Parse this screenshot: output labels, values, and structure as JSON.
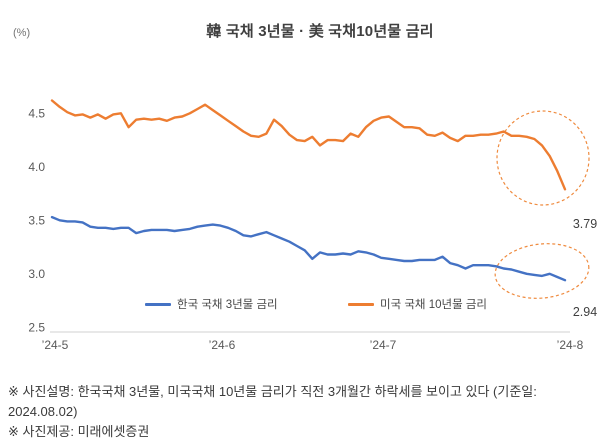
{
  "header": {
    "title": "韓 국채 3년물 · 美 국채10년물 금리",
    "unit_label": "(%)"
  },
  "chart_data": {
    "type": "line",
    "title": "韓 국채 3년물 · 美 국채10년물 금리",
    "ylabel": "(%)",
    "ylim": [
      2.5,
      4.75
    ],
    "y_ticks": [
      4.5,
      4.0,
      3.5,
      3.0,
      2.5
    ],
    "x_ticks": [
      "’24-5",
      "’24-6",
      "’24-7",
      "’24-8"
    ],
    "grid": false,
    "legend_position": "bottom-inside",
    "series": [
      {
        "name": "한국 국채 3년물 금리",
        "color": "#4472C4",
        "end_label": "2.94",
        "values": [
          3.53,
          3.5,
          3.49,
          3.49,
          3.48,
          3.44,
          3.43,
          3.43,
          3.42,
          3.43,
          3.43,
          3.38,
          3.4,
          3.41,
          3.41,
          3.41,
          3.4,
          3.41,
          3.42,
          3.44,
          3.45,
          3.46,
          3.45,
          3.43,
          3.4,
          3.36,
          3.35,
          3.37,
          3.39,
          3.36,
          3.33,
          3.3,
          3.26,
          3.22,
          3.14,
          3.2,
          3.18,
          3.18,
          3.19,
          3.18,
          3.21,
          3.2,
          3.18,
          3.15,
          3.14,
          3.13,
          3.12,
          3.12,
          3.13,
          3.13,
          3.13,
          3.16,
          3.1,
          3.08,
          3.05,
          3.08,
          3.08,
          3.08,
          3.07,
          3.05,
          3.04,
          3.02,
          3.0,
          2.99,
          2.98,
          3.0,
          2.97,
          2.94
        ]
      },
      {
        "name": "미국 국채 10년물 금리",
        "color": "#ED7D31",
        "end_label": "3.79",
        "values": [
          4.62,
          4.56,
          4.51,
          4.48,
          4.49,
          4.46,
          4.49,
          4.45,
          4.49,
          4.5,
          4.37,
          4.44,
          4.45,
          4.44,
          4.45,
          4.43,
          4.46,
          4.47,
          4.5,
          4.54,
          4.58,
          4.53,
          4.48,
          4.43,
          4.38,
          4.33,
          4.29,
          4.28,
          4.31,
          4.44,
          4.38,
          4.3,
          4.25,
          4.24,
          4.28,
          4.2,
          4.25,
          4.25,
          4.24,
          4.31,
          4.28,
          4.37,
          4.43,
          4.46,
          4.47,
          4.42,
          4.37,
          4.37,
          4.36,
          4.3,
          4.29,
          4.32,
          4.27,
          4.24,
          4.29,
          4.29,
          4.3,
          4.3,
          4.31,
          4.33,
          4.29,
          4.29,
          4.28,
          4.26,
          4.2,
          4.1,
          3.96,
          3.79
        ]
      }
    ],
    "annotations": [
      {
        "type": "ellipse",
        "target": "us-series-end",
        "color": "#EF8B3F"
      },
      {
        "type": "ellipse",
        "target": "korea-series-end",
        "color": "#EF8B3F"
      }
    ]
  },
  "footnotes": [
    "※ 사진설명: 한국국채 3년물, 미국국채 10년물 금리가 직전 3개월간 하락세를 보이고 있다 (기준일: 2024.08.02)",
    "※ 사진제공: 미래에셋증권"
  ]
}
